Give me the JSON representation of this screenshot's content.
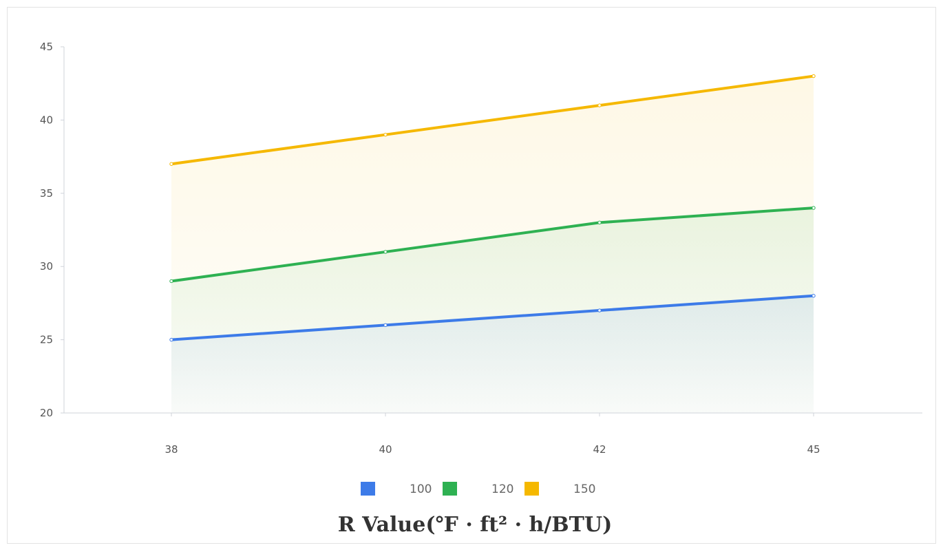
{
  "chart_data": {
    "type": "area",
    "x": [
      "38",
      "40",
      "42",
      "45"
    ],
    "series": [
      {
        "name": "100",
        "values": [
          25,
          26,
          27,
          28
        ],
        "color": "#3d7be8"
      },
      {
        "name": "120",
        "values": [
          29,
          31,
          33,
          34
        ],
        "color": "#2eb152"
      },
      {
        "name": "150",
        "values": [
          37,
          39,
          41,
          43
        ],
        "color": "#f5b800"
      }
    ],
    "title": "",
    "xlabel": "R Value(℉ · ft² · h/BTU)",
    "ylabel": "",
    "ylim": [
      20,
      45
    ],
    "yticks": [
      20,
      25,
      30,
      35,
      40,
      45
    ],
    "grid": false,
    "legend_position": "bottom"
  }
}
